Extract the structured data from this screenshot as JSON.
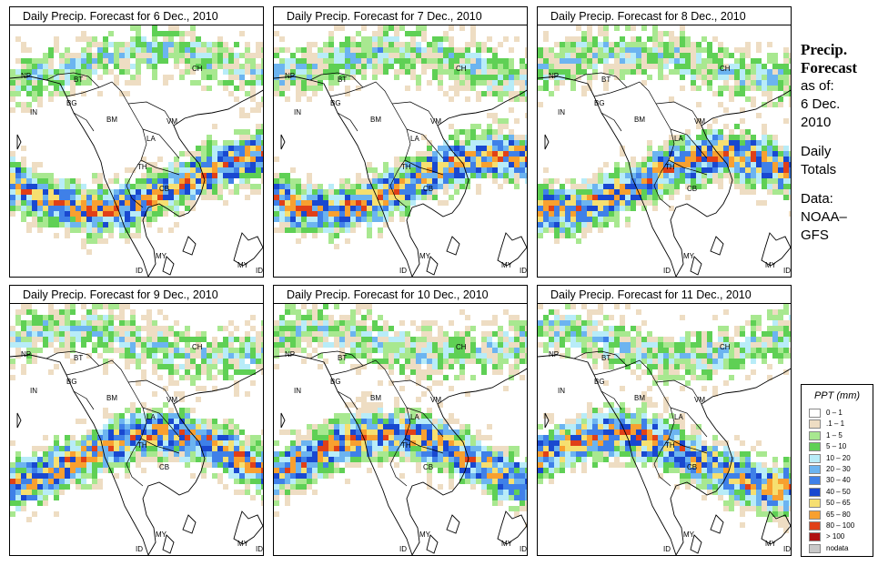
{
  "panels": [
    {
      "title": "Daily Precip. Forecast for  6 Dec., 2010"
    },
    {
      "title": "Daily Precip. Forecast for  7 Dec., 2010"
    },
    {
      "title": "Daily Precip. Forecast for  8 Dec., 2010"
    },
    {
      "title": "Daily Precip. Forecast for  9 Dec., 2010"
    },
    {
      "title": "Daily Precip. Forecast for  10 Dec., 2010"
    },
    {
      "title": "Daily Precip. Forecast for  11 Dec., 2010"
    }
  ],
  "map_labels": [
    "NP",
    "BT",
    "BG",
    "IN",
    "BM",
    "CH",
    "VM",
    "LA",
    "TH",
    "CB",
    "MY",
    "ID",
    "MY",
    "ID",
    "CH"
  ],
  "sidebar": {
    "title_line1": "Precip.",
    "title_line2": "Forecast",
    "asof": "as of:",
    "date_line1": "6 Dec.",
    "date_line2": "2010",
    "daily_line1": "Daily",
    "daily_line2": "Totals",
    "data_line1": "Data:",
    "data_line2": "NOAA–",
    "data_line3": "GFS"
  },
  "legend": {
    "title": "PPT (mm)",
    "items": [
      {
        "label": "0 – 1",
        "color": "#ffffff"
      },
      {
        "label": ".1 – 1",
        "color": "#eeddc3"
      },
      {
        "label": "1 – 5",
        "color": "#a8e890"
      },
      {
        "label": "5 – 10",
        "color": "#5fd055"
      },
      {
        "label": "10 – 20",
        "color": "#b8ecf8"
      },
      {
        "label": "20 – 30",
        "color": "#6cb4f0"
      },
      {
        "label": "30 – 40",
        "color": "#3f80e8"
      },
      {
        "label": "40 – 50",
        "color": "#1948d0"
      },
      {
        "label": "50 – 65",
        "color": "#f6df70"
      },
      {
        "label": "65 – 80",
        "color": "#f8a030"
      },
      {
        "label": "80 – 100",
        "color": "#e04018"
      },
      {
        "label": "> 100",
        "color": "#b01010"
      },
      {
        "label": "nodata",
        "color": "#c8c8c8"
      }
    ]
  }
}
